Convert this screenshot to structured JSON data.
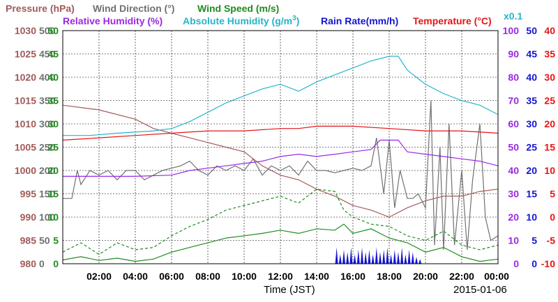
{
  "chart_data": {
    "type": "line",
    "titles": {
      "pressure": "Pressure (hPa)",
      "wind_direction": "Wind Direction (°)",
      "wind_speed": "Wind Speed (m/s)",
      "relative_humidity": "Relative Humidity (%)",
      "absolute_humidity": "Absolute Humidity (g/m",
      "absolute_humidity_sup": "3",
      "absolute_humidity_close": ")",
      "absolute_humidity_scale": "x0.1",
      "rain_rate": "Rain Rate(mm/h)",
      "temperature": "Temperature (°C)"
    },
    "xlabel": "Time (JST)",
    "date": "2015-01-06",
    "x_range_hours": [
      0,
      24
    ],
    "x_ticks": [
      "02:00",
      "04:00",
      "06:00",
      "08:00",
      "10:00",
      "12:00",
      "14:00",
      "16:00",
      "18:00",
      "20:00",
      "22:00",
      "00:00"
    ],
    "axes": {
      "pressure": {
        "range": [
          980,
          1030
        ],
        "ticks": [
          "1030",
          "1025",
          "1020",
          "1015",
          "1010",
          "1005",
          "1000",
          "995",
          "990",
          "985",
          "980"
        ],
        "color": "#a05a5a"
      },
      "wind_direction": {
        "range": [
          0,
          500
        ],
        "ticks": [
          "500",
          "450",
          "400",
          "350",
          "300",
          "250",
          "200",
          "150",
          "100",
          "50",
          "0"
        ],
        "color": "#707070"
      },
      "wind_speed": {
        "range": [
          0,
          50
        ],
        "ticks": [
          "50",
          "45",
          "40",
          "35",
          "30",
          "25",
          "20",
          "15",
          "10",
          "5",
          "0"
        ],
        "color": "#1e8c1e"
      },
      "relative_humidity": {
        "range": [
          0,
          100
        ],
        "ticks": [
          "100",
          "90",
          "80",
          "70",
          "60",
          "50",
          "40",
          "30",
          "20",
          "10",
          "0"
        ],
        "color": "#9a28e6"
      },
      "rain_rate": {
        "range": [
          0,
          50
        ],
        "ticks": [
          "50",
          "45",
          "40",
          "35",
          "30",
          "25",
          "20",
          "15",
          "10",
          "5",
          "0"
        ],
        "color": "#1414d2"
      },
      "temperature": {
        "range": [
          -10,
          40
        ],
        "ticks": [
          "40",
          "35",
          "30",
          "25",
          "20",
          "15",
          "10",
          "5",
          "0",
          "-5",
          "-10"
        ],
        "color": "#e61414"
      }
    },
    "colors": {
      "pressure": "#a05a5a",
      "wind_direction": "#707070",
      "wind_speed": "#1e8c1e",
      "relative_humidity": "#9a28e6",
      "absolute_humidity": "#28b4c8",
      "rain_rate": "#1414d2",
      "temperature": "#e61414"
    },
    "series": [
      {
        "key": "pressure",
        "axis": "pressure",
        "style": "solid",
        "x": [
          0,
          2,
          4,
          5,
          6,
          7,
          8,
          9,
          10,
          11,
          12,
          13,
          14,
          15,
          16,
          17,
          18,
          19,
          20,
          21,
          22,
          23,
          24
        ],
        "y": [
          1014,
          1013,
          1011,
          1009,
          1008,
          1007,
          1006,
          1005,
          1004,
          1001,
          999,
          998,
          996,
          994.5,
          992.5,
          991.5,
          990,
          992,
          993.5,
          994.5,
          994.5,
          995.5,
          996
        ]
      },
      {
        "key": "wind_direction",
        "axis": "wind_direction",
        "style": "solid",
        "x": [
          0,
          0.5,
          0.8,
          1,
          1.5,
          2,
          2.5,
          3,
          3.5,
          4,
          4.5,
          5,
          5.5,
          6,
          6.5,
          7,
          7.5,
          8,
          8.5,
          9,
          9.5,
          10,
          10.5,
          11,
          11.5,
          12,
          12.5,
          13,
          13.5,
          14,
          14.5,
          15,
          15.5,
          16,
          16.5,
          17,
          17.3,
          17.7,
          18,
          18.3,
          18.6,
          19,
          19.3,
          19.6,
          20,
          20.3,
          20.5,
          20.8,
          21,
          21.3,
          21.6,
          22,
          22.3,
          22.6,
          23,
          23.3,
          23.6,
          24
        ],
        "y": [
          140,
          140,
          200,
          170,
          200,
          190,
          200,
          180,
          200,
          200,
          180,
          190,
          200,
          205,
          210,
          220,
          200,
          190,
          210,
          200,
          210,
          200,
          225,
          190,
          210,
          200,
          210,
          190,
          220,
          200,
          200,
          195,
          200,
          205,
          200,
          210,
          270,
          150,
          265,
          120,
          200,
          140,
          140,
          150,
          120,
          350,
          40,
          250,
          30,
          300,
          40,
          200,
          30,
          180,
          300,
          100,
          50,
          60
        ]
      },
      {
        "key": "wind_speed",
        "axis": "wind_speed",
        "style": "solid",
        "x": [
          0,
          1,
          2,
          3,
          4,
          5,
          6,
          7,
          8,
          9,
          10,
          11,
          12,
          13,
          14,
          15,
          15.5,
          16,
          17,
          18,
          19,
          20,
          21,
          22,
          23,
          24
        ],
        "y": [
          0.8,
          1.5,
          0.7,
          1.2,
          0.5,
          1.0,
          2.5,
          3.5,
          4.5,
          5.5,
          6.0,
          6.5,
          7.2,
          6.5,
          7.5,
          7.2,
          8.5,
          6.5,
          7.5,
          5.5,
          4.5,
          2.5,
          3.5,
          1.5,
          0.5,
          1.0
        ]
      },
      {
        "key": "wind_speed_gust",
        "axis": "wind_speed",
        "style": "dashed",
        "x": [
          0,
          1,
          2,
          3,
          4,
          5,
          6,
          7,
          8,
          9,
          10,
          11,
          12,
          13,
          14,
          15,
          15.5,
          16,
          17,
          18,
          19,
          20,
          21,
          22,
          23,
          24
        ],
        "y": [
          2.5,
          4.5,
          2.0,
          4.5,
          3.0,
          3.5,
          6.0,
          8.0,
          9.5,
          11.5,
          12.5,
          13.5,
          14.5,
          13.0,
          16.0,
          15.5,
          11.5,
          10.0,
          8.5,
          8.0,
          6.0,
          5.0,
          7.0,
          4.0,
          3.0,
          4.0
        ]
      },
      {
        "key": "relative_humidity",
        "axis": "relative_humidity",
        "style": "solid",
        "x": [
          0,
          2,
          4,
          6,
          7,
          8,
          9,
          10,
          11,
          12,
          13,
          14,
          15,
          16,
          17,
          17.5,
          18,
          18.5,
          19,
          20,
          21,
          22,
          23,
          24
        ],
        "y": [
          37.5,
          37.5,
          37.5,
          38,
          40,
          41,
          42,
          43,
          44,
          46,
          47,
          46,
          47,
          48,
          49,
          53,
          53,
          53,
          48,
          47,
          46,
          45,
          44,
          42
        ]
      },
      {
        "key": "absolute_humidity",
        "axis": "relative_humidity",
        "style": "solid",
        "x": [
          0,
          1.5,
          3,
          5,
          6,
          7,
          8,
          9,
          10,
          11,
          12,
          13,
          14,
          15,
          16,
          17,
          18,
          18.5,
          19,
          20,
          21,
          22,
          23,
          24
        ],
        "y": [
          55,
          55,
          56,
          57,
          58,
          61,
          65,
          69,
          72,
          75,
          77,
          74,
          78,
          81,
          84,
          87,
          89,
          89,
          83,
          77,
          73,
          70,
          68,
          64
        ]
      },
      {
        "key": "temperature",
        "axis": "temperature",
        "style": "solid",
        "x": [
          0,
          2,
          4,
          6,
          8,
          10,
          12,
          13,
          14,
          16,
          18,
          20,
          22,
          24
        ],
        "y": [
          16.5,
          17.0,
          17.5,
          18.0,
          18.5,
          18.5,
          19.0,
          19.0,
          19.5,
          19.5,
          19.0,
          18.5,
          18.5,
          18.0
        ]
      }
    ],
    "rain_bars": {
      "axis": "rain_rate",
      "x": [
        15.1,
        15.3,
        15.5,
        15.7,
        15.9,
        16.1,
        16.3,
        16.5,
        16.7,
        16.9,
        17.1,
        17.3,
        17.5,
        17.7,
        17.9,
        18.1,
        18.3,
        18.5,
        18.7,
        18.9,
        19.1,
        19.3,
        19.5,
        19.7
      ],
      "y": [
        3.5,
        2.0,
        3.0,
        2.5,
        3.5,
        2.0,
        3.0,
        3.5,
        2.5,
        3.0,
        2.0,
        3.5,
        2.5,
        3.0,
        3.5,
        2.0,
        3.0,
        2.5,
        3.5,
        2.0,
        3.0,
        2.5,
        1.5,
        1.0
      ]
    },
    "grid": true
  }
}
